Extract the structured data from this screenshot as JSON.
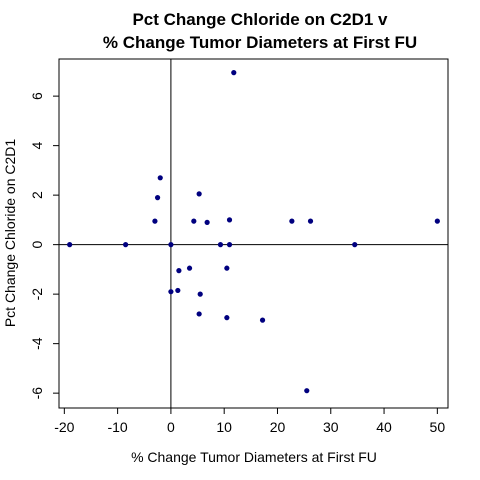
{
  "chart_data": {
    "type": "scatter",
    "title": [
      "Pct Change Chloride on C2D1 v",
      "% Change Tumor Diameters at First FU"
    ],
    "xlabel": "% Change Tumor Diameters at First FU",
    "ylabel": "Pct Change Chloride on C2D1",
    "xlim": [
      -21,
      52
    ],
    "ylim": [
      -6.6,
      7.5
    ],
    "xticks": [
      -20,
      -10,
      0,
      10,
      20,
      30,
      40,
      50
    ],
    "yticks": [
      -6,
      -4,
      -2,
      0,
      2,
      4,
      6
    ],
    "reference_lines": {
      "x": 0,
      "y": 0
    },
    "grid": false,
    "point_color": "#00007f",
    "points": [
      {
        "x": -19,
        "y": 0
      },
      {
        "x": -8.5,
        "y": 0
      },
      {
        "x": -2,
        "y": 2.7
      },
      {
        "x": -2.5,
        "y": 1.9
      },
      {
        "x": -3,
        "y": 0.95
      },
      {
        "x": 0,
        "y": 0
      },
      {
        "x": 0,
        "y": -1.9
      },
      {
        "x": 1.3,
        "y": -1.85
      },
      {
        "x": 1.5,
        "y": -1.05
      },
      {
        "x": 3.5,
        "y": -0.95
      },
      {
        "x": 4.3,
        "y": 0.95
      },
      {
        "x": 5.3,
        "y": 2.05
      },
      {
        "x": 5.5,
        "y": -2.0
      },
      {
        "x": 5.3,
        "y": -2.8
      },
      {
        "x": 6.8,
        "y": 0.9
      },
      {
        "x": 9.3,
        "y": 0
      },
      {
        "x": 10.5,
        "y": -0.95
      },
      {
        "x": 10.5,
        "y": -2.95
      },
      {
        "x": 11.0,
        "y": 0
      },
      {
        "x": 11.0,
        "y": 1.0
      },
      {
        "x": 11.8,
        "y": 6.95
      },
      {
        "x": 17.2,
        "y": -3.05
      },
      {
        "x": 22.7,
        "y": 0.95
      },
      {
        "x": 25.5,
        "y": -5.9
      },
      {
        "x": 26.2,
        "y": 0.95
      },
      {
        "x": 34.5,
        "y": 0
      },
      {
        "x": 50.0,
        "y": 0.95
      }
    ]
  }
}
